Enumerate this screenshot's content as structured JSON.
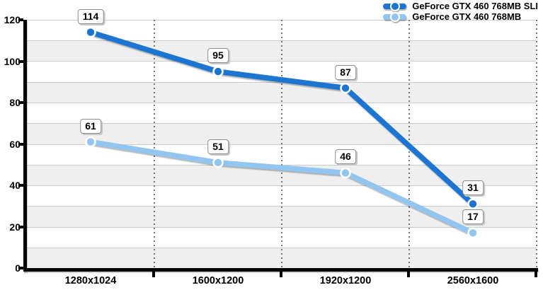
{
  "chart_data": {
    "type": "line",
    "title": "",
    "xlabel": "",
    "ylabel": "",
    "categories": [
      "1280x1024",
      "1600x1200",
      "1920x1200",
      "2560x1600"
    ],
    "series": [
      {
        "name": "GeForce GTX 460 768MB SLI",
        "color": "#1A74D0",
        "values": [
          114,
          95,
          87,
          31
        ]
      },
      {
        "name": "GeForce GTX 460 768MB",
        "color": "#92C5F0",
        "values": [
          61,
          51,
          46,
          17
        ]
      }
    ],
    "ylim": [
      0,
      120
    ],
    "yticks": [
      0,
      20,
      40,
      60,
      80,
      100,
      120
    ],
    "ytick_step": 20,
    "band_step": 10,
    "legend_position": "top-right",
    "grid": {
      "h_band_lines": true,
      "v_dotted_separators": true
    },
    "point_labels_visible": true,
    "colors": {
      "band_fill": "#EFEFEF",
      "gridline": "#CBCBCB",
      "dotted_separator": "#777777",
      "axis": "#000000",
      "value_box_bg": "#FFFFFF",
      "value_box_border": "#8D8D8D",
      "value_box_shadow": "#C9C9C9",
      "text": "#000000"
    }
  }
}
